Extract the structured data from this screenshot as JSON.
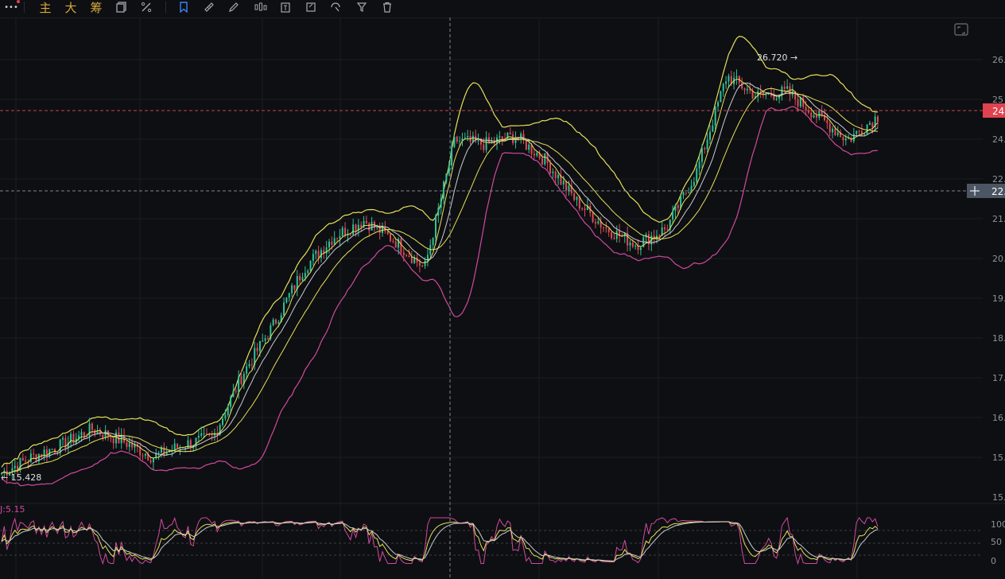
{
  "toolbar": {
    "menu_label": "•••",
    "zhu": "主",
    "da": "大",
    "chou": "筹",
    "icons": [
      "copy-icon",
      "settings-icon",
      "bookmark-icon",
      "ruler-icon",
      "pen-icon",
      "candles-icon",
      "text-icon",
      "note-icon",
      "magnet-icon",
      "filter-icon",
      "trash-icon"
    ]
  },
  "colors": {
    "background": "#0e0f12",
    "grid": "#1b1d21",
    "up": "#2fc29a",
    "down": "#e04b5a",
    "upper_band": "#e6e05a",
    "lower_band": "#d04aa0",
    "mid_band": "#c8cdd4",
    "last_price_tag": "#e0424f",
    "crosshair_tag": "#4b5563"
  },
  "chart_data": [
    {
      "type": "candlestick",
      "y_ticks": [
        "26.",
        "25",
        "24.",
        "22.",
        "21.",
        "20.",
        "19.",
        "18.",
        "17.",
        "16.",
        "15.",
        "15."
      ],
      "ylim": [
        15.0,
        26.7
      ],
      "max_label": "26.720 →",
      "min_label": "← 15.428",
      "last_price_label": "24.",
      "crosshair_price_label": "22.",
      "high": 26.72,
      "low": 15.428,
      "close_path": [
        15.5,
        15.9,
        16.2,
        16.6,
        16.3,
        15.9,
        16.2,
        16.4,
        18.0,
        19.2,
        20.6,
        21.4,
        21.8,
        21.3,
        20.6,
        23.8,
        23.7,
        23.9,
        23.3,
        22.3,
        21.6,
        21.2,
        21.6,
        23.0,
        25.4,
        24.9,
        25.0,
        24.4,
        23.8,
        24.4
      ]
    },
    {
      "type": "line",
      "indicator_label": "J:5.15",
      "y_ticks": [
        "100",
        "50",
        "0"
      ],
      "ylim": [
        0,
        100
      ],
      "series": []
    }
  ]
}
